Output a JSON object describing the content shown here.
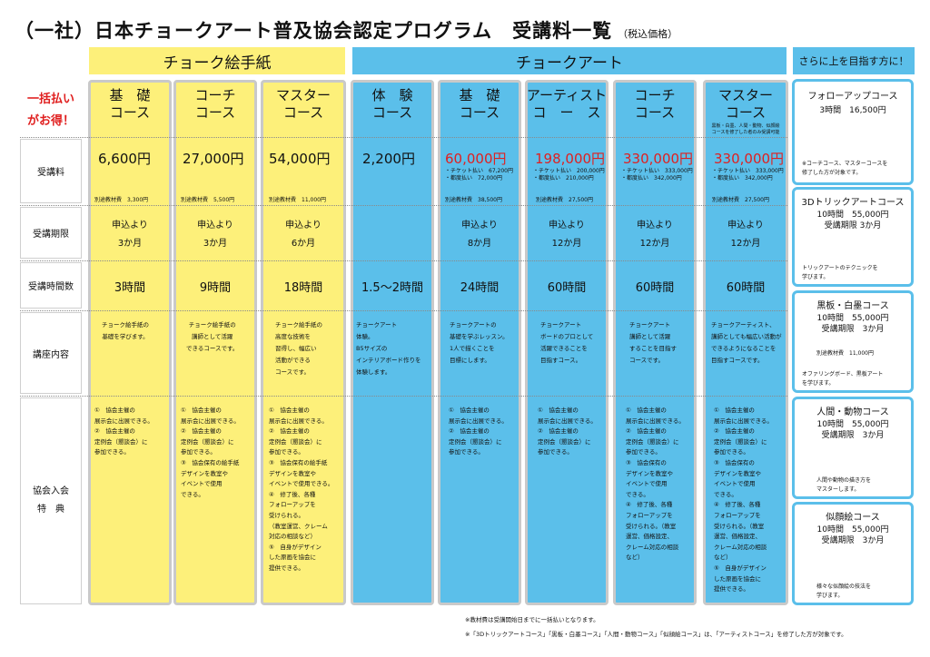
{
  "title": "（一社）日本チョークアート普及協会認定プログラム　受講料一覧",
  "title_note": "（税込価格）",
  "headers": {
    "chalk_letter": "チョーク絵手紙",
    "chalk_art": "チョークアート",
    "more": "さらに上を目指す方に！"
  },
  "promo": [
    "一括払い",
    "がお得！"
  ],
  "row_labels": {
    "fee": "受講料",
    "period": "受講期限",
    "hours": "受講時間数",
    "content": "講座内容",
    "benefit": [
      "協会入会",
      "特　典"
    ]
  },
  "courses": [
    {
      "name": [
        "基　礎",
        "コース"
      ],
      "price": "6,600円",
      "price_notes": [],
      "material": "別途教材費　3,300円",
      "period": [
        "申込より",
        "3か月"
      ],
      "hours": "3時間",
      "content": [
        "チョーク絵手紙の",
        "基礎を学びます。"
      ],
      "benefit": [
        "①　協会主催の",
        "展示会に出展できる。",
        "②　協会主催の",
        "定例会（懇談会）に",
        "参加できる。"
      ]
    },
    {
      "name": [
        "コーチ",
        "コース"
      ],
      "price": "27,000円",
      "price_notes": [],
      "material": "別途教材費　5,500円",
      "period": [
        "申込より",
        "3か月"
      ],
      "hours": "9時間",
      "content": [
        "チョーク絵手紙の",
        "講師として活躍",
        "できるコースです。"
      ],
      "benefit": [
        "①　協会主催の",
        "展示会に出展できる。",
        "②　協会主催の",
        "定例会（懇談会）に",
        "参加できる。",
        "③　協会保有の絵手紙",
        "デザインを教室や",
        "イベントで使用",
        "できる。"
      ]
    },
    {
      "name": [
        "マスター",
        "コース"
      ],
      "price": "54,000円",
      "price_notes": [],
      "material": "別途教材費　11,000円",
      "period": [
        "申込より",
        "6か月"
      ],
      "hours": "18時間",
      "content": [
        "チョーク絵手紙の",
        "高度な技術を",
        "習得し、幅広い",
        "活動ができる",
        "コースです。"
      ],
      "benefit": [
        "①　協会主催の",
        "展示会に出展できる。",
        "②　協会主催の",
        "定例会（懇談会）に",
        "参加できる。",
        "③　協会保有の絵手紙",
        "デザインを教室や",
        "イベントで使用できる。",
        "④　修了後、各種",
        "フォローアップを",
        "受けられる。",
        "（教室運営、クレーム",
        "対応の相談など）",
        "⑤　自身がデザイン",
        "した原画を協会に",
        "提供できる。"
      ]
    },
    {
      "name": [
        "体　験",
        "コース"
      ],
      "price": "2,200円",
      "price_notes": [],
      "material": "",
      "period": [],
      "hours": "1.5～2時間",
      "content": [
        "チョークアート",
        "体験。",
        "B5サイズの",
        "インテリアボード作りを",
        "体験します。"
      ],
      "benefit": []
    },
    {
      "name": [
        "基　礎",
        "コース"
      ],
      "price": "60,000円",
      "price_notes": [
        "・チケット払い　67,200円",
        "・都度払い　72,000円"
      ],
      "material": "別途教材費　38,500円",
      "period": [
        "申込より",
        "8か月"
      ],
      "hours": "24時間",
      "content": [
        "チョークアートの",
        "基礎を学ぶレッスン。",
        "1人で描くことを",
        "目標にします。"
      ],
      "benefit": [
        "①　協会主催の",
        "展示会に出展できる。",
        "②　協会主催の",
        "定例会（懇談会）に",
        "参加できる。"
      ]
    },
    {
      "name": [
        "アーティスト",
        "コ　ー　ス"
      ],
      "price": "198,000円",
      "price_notes": [
        "・チケット払い　200,000円",
        "・都度払い　210,000円"
      ],
      "material": "別途教材費　27,500円",
      "period": [
        "申込より",
        "12か月"
      ],
      "hours": "60時間",
      "content": [
        "チョークアート",
        "ボードのプロとして",
        "活躍できることを",
        "目指すコース。"
      ],
      "benefit": [
        "①　協会主催の",
        "展示会に出展できる。",
        "②　協会主催の",
        "定例会（懇談会）に",
        "参加できる。"
      ]
    },
    {
      "name": [
        "コーチ",
        "コース"
      ],
      "price": "330,000円",
      "price_notes": [
        "・チケット払い　333,000円",
        "・都度払い　342,000円"
      ],
      "material": "",
      "period": [
        "申込より",
        "12か月"
      ],
      "hours": "60時間",
      "content": [
        "チョークアート",
        "講師として活躍",
        "することを目指す",
        "コースです。"
      ],
      "benefit": [
        "①　協会主催の",
        "展示会に出展できる。",
        "②　協会主催の",
        "定例会（懇談会）に",
        "参加できる。",
        "③　協会保有の",
        "デザインを教室や",
        "イベントで使用",
        "できる。",
        "④　修了後、各種",
        "フォローアップを",
        "受けられる。（教室",
        "運営、価格設定、",
        "クレーム対応の相談",
        "など）"
      ]
    },
    {
      "name": [
        "マスター",
        "コース"
      ],
      "name_note": [
        "黒板・白墨、人間・動物、似顔絵",
        "コースを修了した者のみ受講可能"
      ],
      "price": "330,000円",
      "price_notes": [
        "・チケット払い　333,000円",
        "・都度払い　342,000円"
      ],
      "material": "別途教材費　27,500円",
      "period": [
        "申込より",
        "12か月"
      ],
      "hours": "60時間",
      "content": [
        "チョークアーティスト、",
        "講師としても幅広い活動が",
        "できるようになることを",
        "目指すコースです。"
      ],
      "benefit": [
        "①　協会主催の",
        "展示会に出展できる。",
        "②　協会主催の",
        "定例会（懇談会）に",
        "参加できる。",
        "③　協会保有の",
        "デザインを教室や",
        "イベントで使用",
        "できる。",
        "④　修了後、各種",
        "フォローアップを",
        "受けられる。（教室",
        "運営、価格設定、",
        "クレーム対応の相談",
        "など）",
        "⑤　自身がデザイン",
        "した原画を協会に",
        "提供できる。"
      ]
    }
  ],
  "extras": [
    {
      "title": "フォローアップコース",
      "lines": [
        "3時間　16,500円"
      ],
      "notes": [
        "※コーチコース、マスターコースを",
        "修了した方が対象です。"
      ]
    },
    {
      "title": "3Dトリックアートコース",
      "lines": [
        "10時間　55,000円",
        "受講期限 3か月"
      ],
      "notes": [
        "トリックアートのテクニックを",
        "学びます。"
      ]
    },
    {
      "title": "黒板・白墨コース",
      "lines": [
        "10時間　55,000円",
        "受講期限　3か月"
      ],
      "material": "別途教材費　11,000円",
      "notes": [
        "オファリングボード、黒板アート",
        "を学びます。"
      ]
    },
    {
      "title": "人間・動物コース",
      "lines": [
        "10時間　55,000円",
        "受講期限　3か月"
      ],
      "notes": [
        "人間や動物の描き方を",
        "マスターします。"
      ]
    },
    {
      "title": "似顔絵コース",
      "lines": [
        "10時間　55,000円",
        "受講期限　3か月"
      ],
      "notes": [
        "様々な似顔絵の技法を",
        "学びます。"
      ]
    }
  ],
  "footnotes": [
    "※教材費は受講開始日までに一括払いとなります。",
    "※「3Dトリックアートコース」「黒板・白墨コース」「人間・動物コース」「似顔絵コース」は、「アーティストコース」を修了した方が対象です。"
  ],
  "colors": {
    "yellow": "#fdf07a",
    "blue": "#5bbfea",
    "red": "#e02020",
    "border_gray": "#c9c9c9"
  }
}
